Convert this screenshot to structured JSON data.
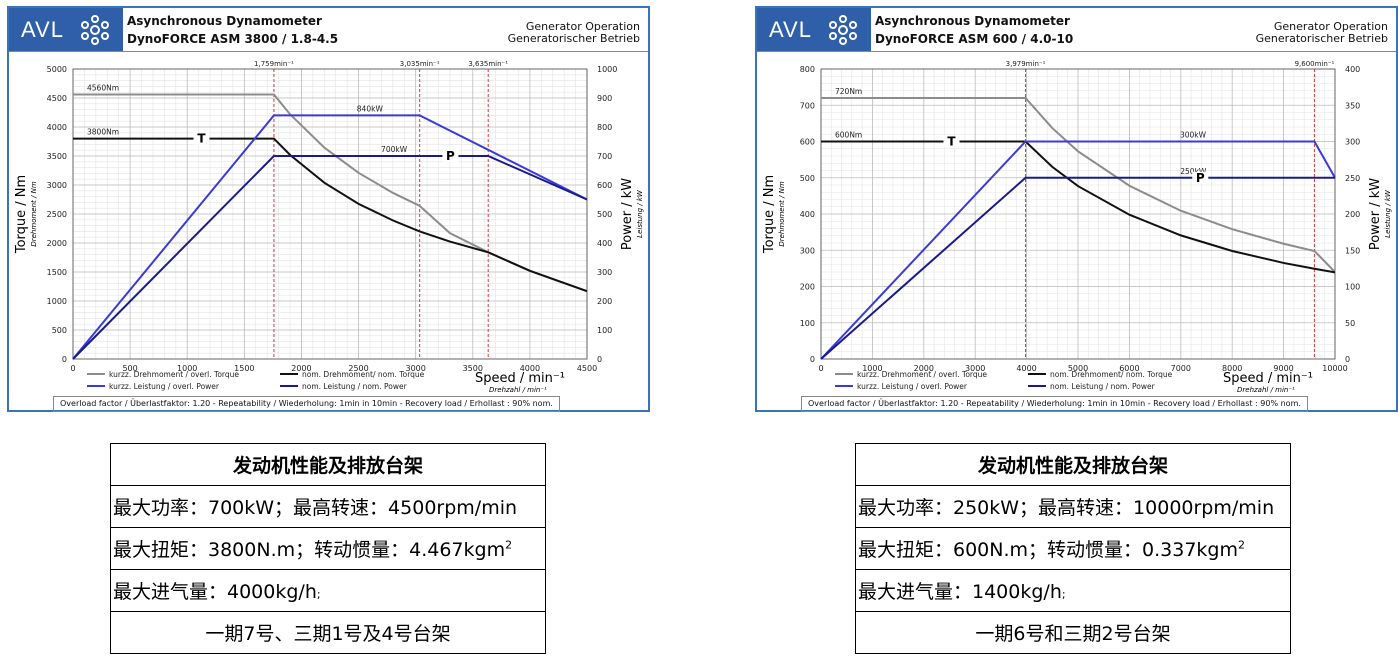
{
  "panels": [
    {
      "brand": "AVL",
      "title": "Asynchronous Dynamometer",
      "model": "DynoFORCE ASM 3800 / 1.8-4.5",
      "mode_en": "Generator Operation",
      "mode_de": "Generatorischer Betrieb",
      "footer": "Overload factor / Überlastfaktor: 1.20  -  Repeatability / Wiederholung:  1min in 10min  -  Recovery load / Erhollast : 90% nom.",
      "chart_data": {
        "type": "line",
        "xlabel": "Speed  / min⁻¹",
        "xlabel_sub": "Drehzahl / min⁻¹",
        "ylabel": "Torque / Nm",
        "ylabel_sub": "Drehmoment / Nm",
        "y2label": "Power / kW",
        "y2label_sub": "Leistung / kW",
        "xlim": [
          0,
          4500
        ],
        "ylim": [
          0,
          5000
        ],
        "y2lim": [
          0,
          1000
        ],
        "xticks": [
          0,
          500,
          1000,
          1500,
          2000,
          2500,
          3000,
          3500,
          4000,
          4500
        ],
        "yticks": [
          0,
          500,
          1000,
          1500,
          2000,
          2500,
          3000,
          3500,
          4000,
          4500,
          5000
        ],
        "y2ticks": [
          0,
          100,
          200,
          300,
          400,
          500,
          600,
          700,
          800,
          900,
          1000
        ],
        "grid": true,
        "vlines": [
          {
            "x": 1759,
            "label": "1,759min⁻¹"
          },
          {
            "x": 3035,
            "label": "3,035min⁻¹"
          },
          {
            "x": 3635,
            "label": "3,635min⁻¹"
          }
        ],
        "series": [
          {
            "name": "kurzz. Drehmoment / overl. Torque",
            "axis": "left",
            "color": "#8c8c8c",
            "x": [
              0,
              1759,
              1900,
              2200,
              2500,
              2800,
              3035,
              3300,
              3635,
              4000,
              4500
            ],
            "y": [
              4560,
              4560,
              4220,
              3645,
              3210,
              2865,
              2640,
              2170,
              1840,
              1520,
              1170
            ]
          },
          {
            "name": "nom. Drehmoment/ nom. Torque",
            "axis": "left",
            "color": "#111111",
            "x": [
              0,
              1759,
              1900,
              2200,
              2500,
              2800,
              3035,
              3300,
              3635,
              4000,
              4500
            ],
            "y": [
              3800,
              3800,
              3520,
              3040,
              2675,
              2390,
              2200,
              2025,
              1840,
              1520,
              1170
            ]
          },
          {
            "name": "kurzz. Leistung / overl. Power",
            "axis": "right",
            "color": "#3a3ad8",
            "x": [
              0,
              1759,
              3035,
              4500
            ],
            "y": [
              0,
              840,
              840,
              550
            ]
          },
          {
            "name": "nom. Leistung / nom. Power",
            "axis": "right",
            "color": "#1a1a8c",
            "x": [
              0,
              1759,
              3635,
              4500
            ],
            "y": [
              0,
              700,
              700,
              550
            ]
          }
        ],
        "annotations": [
          "4560Nm",
          "3800Nm",
          "840kW",
          "700kW",
          "T",
          "P"
        ]
      }
    },
    {
      "brand": "AVL",
      "title": "Asynchronous Dynamometer",
      "model": "DynoFORCE ASM 600 / 4.0-10",
      "mode_en": "Generator Operation",
      "mode_de": "Generatorischer Betrieb",
      "footer": "Overload factor / Überlastfaktor: 1.20  -  Repeatability / Wiederholung:  1min in 10min  -  Recovery load / Erhollast : 90% nom.",
      "chart_data": {
        "type": "line",
        "xlabel": "Speed  / min⁻¹",
        "xlabel_sub": "Drehzahl / min⁻¹",
        "ylabel": "Torque / Nm",
        "ylabel_sub": "Drehmoment / Nm",
        "y2label": "Power / kW",
        "y2label_sub": "Leistung / kW",
        "xlim": [
          0,
          10000
        ],
        "ylim": [
          0,
          800
        ],
        "y2lim": [
          0,
          400
        ],
        "xticks": [
          0,
          1000,
          2000,
          3000,
          4000,
          5000,
          6000,
          7000,
          8000,
          9000,
          10000
        ],
        "yticks": [
          0,
          100,
          200,
          300,
          400,
          500,
          600,
          700,
          800
        ],
        "y2ticks": [
          0,
          50,
          100,
          150,
          200,
          250,
          300,
          350,
          400
        ],
        "grid": true,
        "vlines": [
          {
            "x": 3979,
            "label": "3,979min⁻¹"
          },
          {
            "x": 9600,
            "label": "9,600min⁻¹"
          }
        ],
        "series": [
          {
            "name": "kurzz. Drehmoment / overl. Torque",
            "axis": "left",
            "color": "#8c8c8c",
            "x": [
              0,
              3979,
              4500,
              5000,
              6000,
              7000,
              8000,
              9000,
              9600,
              10000
            ],
            "y": [
              720,
              720,
              637,
              573,
              478,
              409,
              358,
              318,
              298,
              240
            ]
          },
          {
            "name": "nom. Drehmoment/ nom. Torque",
            "axis": "left",
            "color": "#111111",
            "x": [
              0,
              3979,
              4500,
              5000,
              6000,
              7000,
              8000,
              9000,
              9600,
              10000
            ],
            "y": [
              600,
              600,
              530,
              477,
              398,
              341,
              298,
              265,
              249,
              239
            ]
          },
          {
            "name": "kurzz. Leistung / overl. Power",
            "axis": "right",
            "color": "#3a3ad8",
            "x": [
              0,
              3979,
              9600,
              10000
            ],
            "y": [
              0,
              300,
              300,
              250
            ]
          },
          {
            "name": "nom. Leistung / nom. Power",
            "axis": "right",
            "color": "#1a1a8c",
            "x": [
              0,
              3979,
              10000
            ],
            "y": [
              0,
              250,
              250
            ]
          }
        ],
        "annotations": [
          "720Nm",
          "600Nm",
          "300kW",
          "250kW",
          "T",
          "P"
        ]
      }
    }
  ],
  "tables": [
    {
      "title": "发动机性能及排放台架",
      "row1": "最大功率：700kW；最高转速：4500rpm/min",
      "row2": "最大扭矩：3800N.m；转动惯量：4.467kgm",
      "row2_sup": "2",
      "row3": "最大进气量：4000kg/h",
      "row3_suffix": ";",
      "row4": "一期7号、三期1号及4号台架"
    },
    {
      "title": "发动机性能及排放台架",
      "row1": "最大功率：250kW；最高转速：10000rpm/min",
      "row2": "最大扭矩：600N.m；转动惯量：0.337kgm",
      "row2_sup": "2",
      "row3": "最大进气量：1400kg/h",
      "row3_suffix": ";",
      "row4": "一期6号和三期2号台架"
    }
  ]
}
